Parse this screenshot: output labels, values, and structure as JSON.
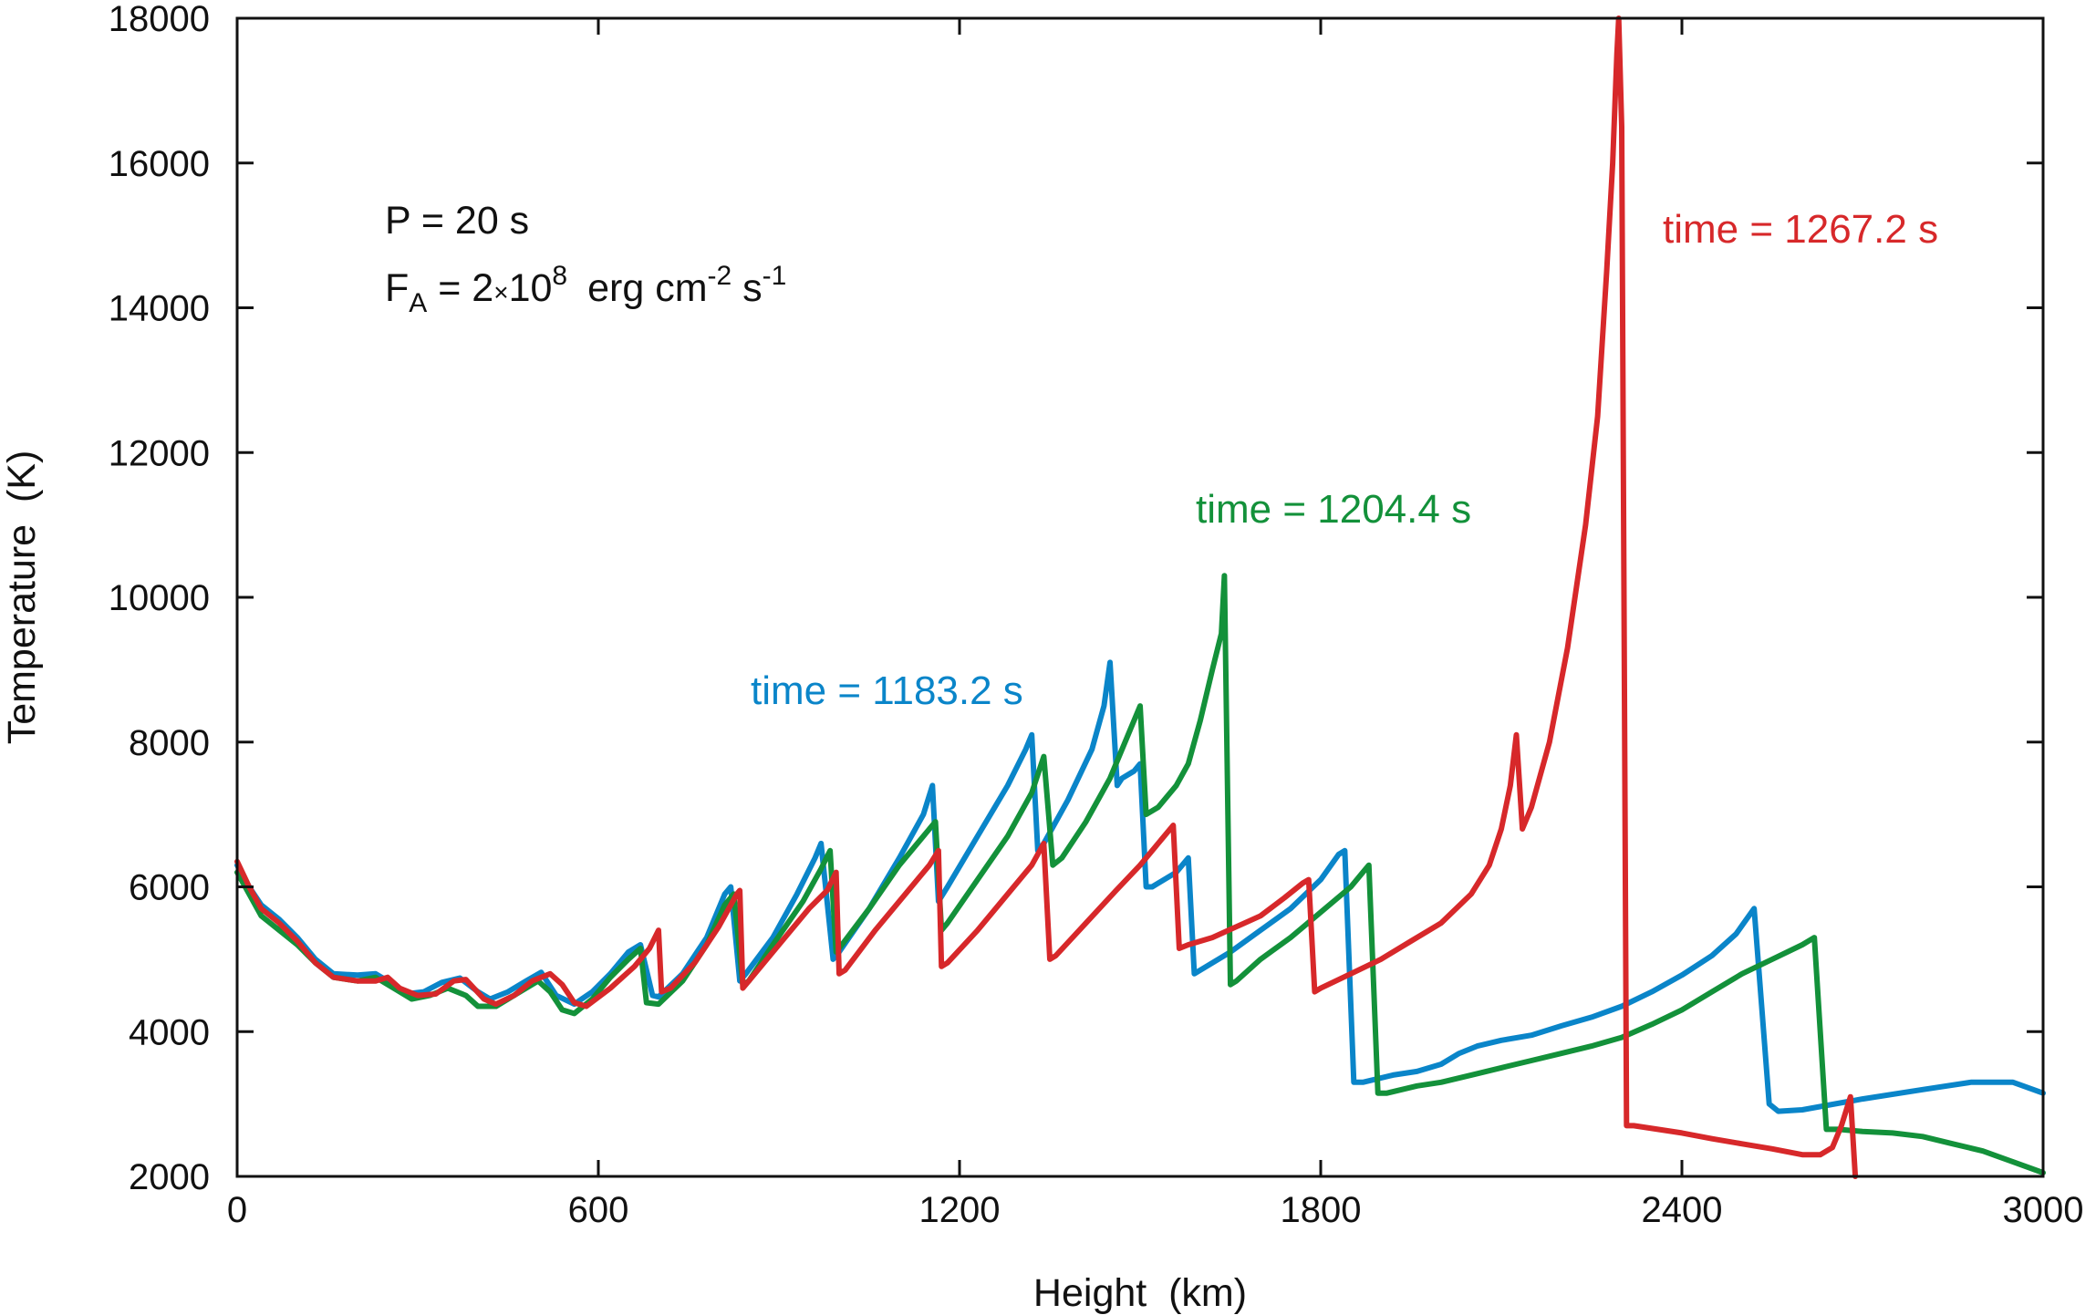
{
  "chart_data": {
    "type": "line",
    "title": "",
    "xlabel": "Height  (km)",
    "ylabel": "Temperature  (K)",
    "xlim": [
      0,
      3000
    ],
    "ylim": [
      2000,
      18000
    ],
    "x_ticks": [
      0,
      600,
      1200,
      1800,
      2400,
      3000
    ],
    "x_tick_labels": [
      "0",
      "600",
      "1200",
      "1800",
      "2400",
      "3000"
    ],
    "y_ticks": [
      2000,
      4000,
      6000,
      8000,
      10000,
      12000,
      14000,
      16000,
      18000
    ],
    "y_tick_labels": [
      "2000",
      "4000",
      "6000",
      "8000",
      "10000",
      "12000",
      "14000",
      "16000",
      "18000"
    ],
    "grid": false,
    "annotation": {
      "line1": "P = 20 s",
      "line2_prefix": "F",
      "line2_sub": "A",
      "line2_mid": " = 2",
      "line2_times": "×",
      "line2_base": "10",
      "line2_exp": "8",
      "line2_unit": "erg cm",
      "line2_exp2": "-2",
      "line2_s": " s",
      "line2_exp3": "-1"
    },
    "series": [
      {
        "name": "time = 1183.2 s",
        "color": "#0a85c9",
        "points": [
          [
            0,
            6300
          ],
          [
            20,
            6000
          ],
          [
            40,
            5750
          ],
          [
            70,
            5550
          ],
          [
            100,
            5300
          ],
          [
            130,
            5000
          ],
          [
            160,
            4800
          ],
          [
            200,
            4780
          ],
          [
            230,
            4800
          ],
          [
            260,
            4650
          ],
          [
            280,
            4520
          ],
          [
            310,
            4550
          ],
          [
            340,
            4680
          ],
          [
            370,
            4740
          ],
          [
            400,
            4550
          ],
          [
            420,
            4450
          ],
          [
            450,
            4550
          ],
          [
            480,
            4700
          ],
          [
            505,
            4820
          ],
          [
            530,
            4500
          ],
          [
            560,
            4380
          ],
          [
            590,
            4550
          ],
          [
            620,
            4800
          ],
          [
            650,
            5100
          ],
          [
            670,
            5200
          ],
          [
            690,
            4500
          ],
          [
            700,
            4480
          ],
          [
            740,
            4800
          ],
          [
            780,
            5300
          ],
          [
            810,
            5900
          ],
          [
            820,
            6000
          ],
          [
            835,
            4700
          ],
          [
            845,
            4800
          ],
          [
            890,
            5300
          ],
          [
            930,
            5900
          ],
          [
            960,
            6400
          ],
          [
            970,
            6600
          ],
          [
            990,
            5000
          ],
          [
            1000,
            5100
          ],
          [
            1050,
            5700
          ],
          [
            1100,
            6400
          ],
          [
            1140,
            7000
          ],
          [
            1155,
            7400
          ],
          [
            1165,
            5800
          ],
          [
            1180,
            6000
          ],
          [
            1230,
            6700
          ],
          [
            1280,
            7400
          ],
          [
            1310,
            7900
          ],
          [
            1320,
            8100
          ],
          [
            1330,
            6500
          ],
          [
            1340,
            6600
          ],
          [
            1380,
            7200
          ],
          [
            1420,
            7900
          ],
          [
            1440,
            8500
          ],
          [
            1450,
            9100
          ],
          [
            1462,
            7400
          ],
          [
            1470,
            7500
          ],
          [
            1490,
            7600
          ],
          [
            1500,
            7700
          ],
          [
            1510,
            6000
          ],
          [
            1520,
            6000
          ],
          [
            1560,
            6200
          ],
          [
            1580,
            6400
          ],
          [
            1590,
            4800
          ],
          [
            1600,
            4850
          ],
          [
            1650,
            5100
          ],
          [
            1700,
            5400
          ],
          [
            1750,
            5700
          ],
          [
            1800,
            6100
          ],
          [
            1830,
            6450
          ],
          [
            1840,
            6500
          ],
          [
            1855,
            3300
          ],
          [
            1870,
            3300
          ],
          [
            1920,
            3400
          ],
          [
            1960,
            3450
          ],
          [
            2000,
            3550
          ],
          [
            2030,
            3700
          ],
          [
            2060,
            3800
          ],
          [
            2100,
            3880
          ],
          [
            2150,
            3950
          ],
          [
            2200,
            4080
          ],
          [
            2250,
            4200
          ],
          [
            2300,
            4350
          ],
          [
            2350,
            4550
          ],
          [
            2400,
            4780
          ],
          [
            2450,
            5050
          ],
          [
            2490,
            5350
          ],
          [
            2520,
            5700
          ],
          [
            2545,
            3000
          ],
          [
            2560,
            2900
          ],
          [
            2600,
            2920
          ],
          [
            2700,
            3070
          ],
          [
            2800,
            3200
          ],
          [
            2880,
            3300
          ],
          [
            2950,
            3300
          ],
          [
            3000,
            3150
          ]
        ]
      },
      {
        "name": "time = 1204.4 s",
        "color": "#13913a",
        "points": [
          [
            0,
            6200
          ],
          [
            20,
            5900
          ],
          [
            40,
            5600
          ],
          [
            70,
            5400
          ],
          [
            100,
            5200
          ],
          [
            130,
            4950
          ],
          [
            160,
            4750
          ],
          [
            200,
            4700
          ],
          [
            230,
            4750
          ],
          [
            260,
            4600
          ],
          [
            290,
            4450
          ],
          [
            320,
            4500
          ],
          [
            350,
            4600
          ],
          [
            380,
            4500
          ],
          [
            400,
            4350
          ],
          [
            430,
            4350
          ],
          [
            470,
            4550
          ],
          [
            500,
            4700
          ],
          [
            520,
            4550
          ],
          [
            540,
            4300
          ],
          [
            560,
            4250
          ],
          [
            590,
            4450
          ],
          [
            620,
            4750
          ],
          [
            650,
            5000
          ],
          [
            670,
            5150
          ],
          [
            680,
            4400
          ],
          [
            700,
            4380
          ],
          [
            740,
            4700
          ],
          [
            780,
            5200
          ],
          [
            810,
            5750
          ],
          [
            825,
            5900
          ],
          [
            840,
            4650
          ],
          [
            850,
            4700
          ],
          [
            890,
            5200
          ],
          [
            940,
            5800
          ],
          [
            970,
            6250
          ],
          [
            985,
            6500
          ],
          [
            995,
            5100
          ],
          [
            1000,
            5150
          ],
          [
            1050,
            5700
          ],
          [
            1100,
            6300
          ],
          [
            1140,
            6700
          ],
          [
            1160,
            6900
          ],
          [
            1170,
            5400
          ],
          [
            1180,
            5500
          ],
          [
            1230,
            6100
          ],
          [
            1280,
            6700
          ],
          [
            1320,
            7300
          ],
          [
            1340,
            7800
          ],
          [
            1355,
            6300
          ],
          [
            1370,
            6400
          ],
          [
            1410,
            6900
          ],
          [
            1450,
            7500
          ],
          [
            1480,
            8100
          ],
          [
            1500,
            8500
          ],
          [
            1510,
            7000
          ],
          [
            1530,
            7100
          ],
          [
            1560,
            7400
          ],
          [
            1580,
            7700
          ],
          [
            1600,
            8300
          ],
          [
            1620,
            9000
          ],
          [
            1635,
            9500
          ],
          [
            1640,
            10300
          ],
          [
            1650,
            4650
          ],
          [
            1660,
            4700
          ],
          [
            1700,
            5000
          ],
          [
            1750,
            5300
          ],
          [
            1800,
            5650
          ],
          [
            1850,
            6000
          ],
          [
            1870,
            6200
          ],
          [
            1880,
            6300
          ],
          [
            1895,
            3150
          ],
          [
            1910,
            3150
          ],
          [
            1960,
            3250
          ],
          [
            2000,
            3300
          ],
          [
            2050,
            3400
          ],
          [
            2100,
            3500
          ],
          [
            2150,
            3600
          ],
          [
            2200,
            3700
          ],
          [
            2250,
            3800
          ],
          [
            2300,
            3920
          ],
          [
            2350,
            4100
          ],
          [
            2400,
            4300
          ],
          [
            2450,
            4550
          ],
          [
            2500,
            4800
          ],
          [
            2550,
            5000
          ],
          [
            2600,
            5200
          ],
          [
            2620,
            5300
          ],
          [
            2640,
            2650
          ],
          [
            2660,
            2650
          ],
          [
            2700,
            2620
          ],
          [
            2750,
            2600
          ],
          [
            2800,
            2550
          ],
          [
            2850,
            2450
          ],
          [
            2900,
            2350
          ],
          [
            2950,
            2200
          ],
          [
            3000,
            2050
          ]
        ]
      },
      {
        "name": "time = 1267.2 s",
        "color": "#d7282a",
        "points": [
          [
            0,
            6350
          ],
          [
            20,
            6000
          ],
          [
            40,
            5700
          ],
          [
            70,
            5500
          ],
          [
            100,
            5250
          ],
          [
            130,
            4950
          ],
          [
            160,
            4750
          ],
          [
            200,
            4700
          ],
          [
            230,
            4700
          ],
          [
            250,
            4750
          ],
          [
            270,
            4600
          ],
          [
            300,
            4500
          ],
          [
            330,
            4520
          ],
          [
            360,
            4700
          ],
          [
            380,
            4720
          ],
          [
            410,
            4450
          ],
          [
            430,
            4380
          ],
          [
            460,
            4500
          ],
          [
            490,
            4700
          ],
          [
            520,
            4800
          ],
          [
            540,
            4650
          ],
          [
            560,
            4400
          ],
          [
            580,
            4350
          ],
          [
            620,
            4600
          ],
          [
            660,
            4900
          ],
          [
            685,
            5150
          ],
          [
            700,
            5400
          ],
          [
            705,
            4550
          ],
          [
            720,
            4600
          ],
          [
            760,
            4950
          ],
          [
            800,
            5450
          ],
          [
            830,
            5900
          ],
          [
            835,
            5950
          ],
          [
            840,
            4600
          ],
          [
            850,
            4700
          ],
          [
            900,
            5200
          ],
          [
            950,
            5700
          ],
          [
            980,
            5950
          ],
          [
            995,
            6200
          ],
          [
            1000,
            4800
          ],
          [
            1010,
            4850
          ],
          [
            1060,
            5400
          ],
          [
            1110,
            5900
          ],
          [
            1150,
            6300
          ],
          [
            1165,
            6500
          ],
          [
            1170,
            4900
          ],
          [
            1180,
            4950
          ],
          [
            1230,
            5400
          ],
          [
            1280,
            5900
          ],
          [
            1320,
            6300
          ],
          [
            1340,
            6600
          ],
          [
            1350,
            5000
          ],
          [
            1360,
            5050
          ],
          [
            1410,
            5500
          ],
          [
            1460,
            5950
          ],
          [
            1500,
            6300
          ],
          [
            1540,
            6700
          ],
          [
            1555,
            6850
          ],
          [
            1565,
            5150
          ],
          [
            1580,
            5200
          ],
          [
            1620,
            5300
          ],
          [
            1660,
            5450
          ],
          [
            1700,
            5600
          ],
          [
            1740,
            5850
          ],
          [
            1770,
            6050
          ],
          [
            1780,
            6100
          ],
          [
            1790,
            4550
          ],
          [
            1800,
            4600
          ],
          [
            1850,
            4800
          ],
          [
            1900,
            5000
          ],
          [
            1950,
            5250
          ],
          [
            2000,
            5500
          ],
          [
            2050,
            5900
          ],
          [
            2080,
            6300
          ],
          [
            2100,
            6800
          ],
          [
            2115,
            7400
          ],
          [
            2125,
            8100
          ],
          [
            2135,
            6800
          ],
          [
            2150,
            7100
          ],
          [
            2180,
            8000
          ],
          [
            2210,
            9300
          ],
          [
            2240,
            11000
          ],
          [
            2260,
            12500
          ],
          [
            2275,
            14500
          ],
          [
            2285,
            16000
          ],
          [
            2292,
            17500
          ],
          [
            2295,
            18000
          ],
          [
            2300,
            16500
          ],
          [
            2308,
            2700
          ],
          [
            2320,
            2700
          ],
          [
            2360,
            2650
          ],
          [
            2400,
            2600
          ],
          [
            2450,
            2520
          ],
          [
            2500,
            2450
          ],
          [
            2550,
            2380
          ],
          [
            2600,
            2300
          ],
          [
            2630,
            2300
          ],
          [
            2650,
            2400
          ],
          [
            2665,
            2700
          ],
          [
            2680,
            3100
          ],
          [
            2688,
            2000
          ]
        ]
      }
    ]
  },
  "labels": {
    "blue": "time = 1183.2 s",
    "green": "time = 1204.4 s",
    "red": "time = 1267.2 s"
  }
}
